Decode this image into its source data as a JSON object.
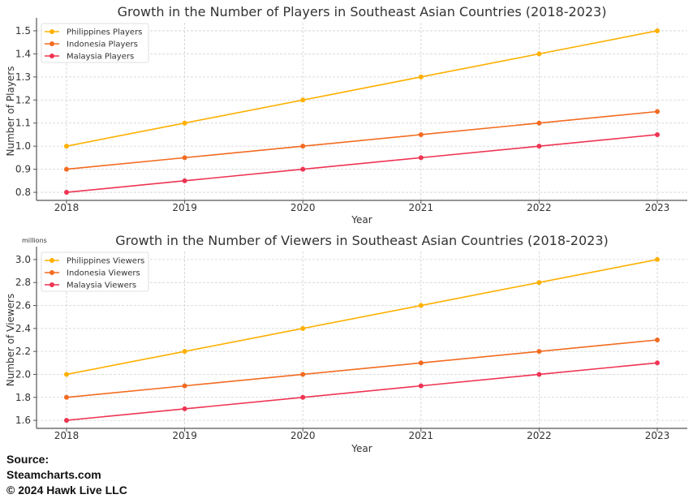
{
  "chart_data": [
    {
      "type": "line",
      "title": "Growth in the Number of Players in Southeast Asian Countries (2018-2023)",
      "xlabel": "Year",
      "ylabel": "Number of Players",
      "x": [
        2018,
        2019,
        2020,
        2021,
        2022,
        2023
      ],
      "x_tick_labels": [
        "2018",
        "2019",
        "2020",
        "2021",
        "2022",
        "2023"
      ],
      "y_ticks": [
        0.8,
        0.9,
        1.0,
        1.1,
        1.2,
        1.3,
        1.4,
        1.5
      ],
      "y_tick_labels": [
        "0.8",
        "0.9",
        "1.0",
        "1.1",
        "1.2",
        "1.3",
        "1.4",
        "1.5"
      ],
      "ylim": [
        0.765,
        1.535
      ],
      "grid": true,
      "legend_position": "top-left",
      "series": [
        {
          "name": "Philippines Players",
          "color": "#FFB000",
          "values": [
            1.0,
            1.1,
            1.2,
            1.3,
            1.4,
            1.5
          ]
        },
        {
          "name": "Indonesia Players",
          "color": "#F26B21",
          "values": [
            0.9,
            0.95,
            1.0,
            1.05,
            1.1,
            1.15
          ]
        },
        {
          "name": "Malaysia Players",
          "color": "#EE3452",
          "values": [
            0.8,
            0.85,
            0.9,
            0.95,
            1.0,
            1.05
          ]
        }
      ]
    },
    {
      "type": "line",
      "title": "Growth in the Number of Viewers in Southeast Asian Countries (2018-2023)",
      "xlabel": "Year",
      "ylabel": "Number of Viewers",
      "y_unit_label": "millions",
      "x": [
        2018,
        2019,
        2020,
        2021,
        2022,
        2023
      ],
      "x_tick_labels": [
        "2018",
        "2019",
        "2020",
        "2021",
        "2022",
        "2023"
      ],
      "y_ticks": [
        1.6,
        1.8,
        2.0,
        2.2,
        2.4,
        2.6,
        2.8,
        3.0
      ],
      "y_tick_labels": [
        "1.6",
        "1.8",
        "2.0",
        "2.2",
        "2.4",
        "2.6",
        "2.8",
        "3.0"
      ],
      "ylim": [
        1.53,
        3.07
      ],
      "grid": true,
      "legend_position": "top-left",
      "series": [
        {
          "name": "Philippines Viewers",
          "color": "#FFB000",
          "values": [
            2.0,
            2.2,
            2.4,
            2.6,
            2.8,
            3.0
          ]
        },
        {
          "name": "Indonesia Viewers",
          "color": "#F26B21",
          "values": [
            1.8,
            1.9,
            2.0,
            2.1,
            2.2,
            2.3
          ]
        },
        {
          "name": "Malaysia Viewers",
          "color": "#EE3452",
          "values": [
            1.6,
            1.7,
            1.8,
            1.9,
            2.0,
            2.1
          ]
        }
      ]
    }
  ],
  "footer": {
    "source_label": "Source:",
    "source_name": "Steamcharts.com",
    "copyright": "© 2024 Hawk Live LLC"
  }
}
